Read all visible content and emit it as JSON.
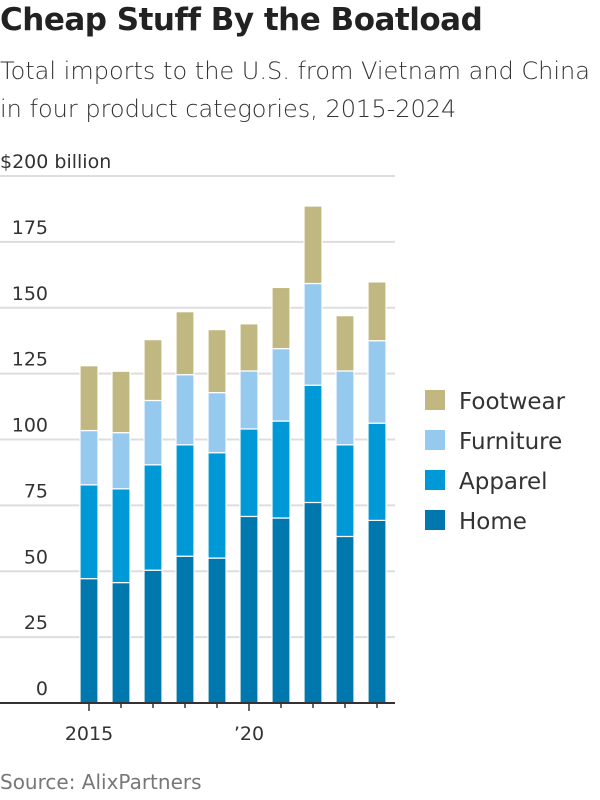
{
  "title": "Cheap Stuff By the Boatload",
  "subtitle": "Total imports to the U.S. from Vietnam and China in four product categories, 2015-2024",
  "source": "Source: AlixPartners",
  "chart_data": {
    "type": "bar",
    "stacked": true,
    "title": "Cheap Stuff By the Boatload",
    "ylabel": "$200 billion",
    "ylim": [
      0,
      200
    ],
    "yticks": [
      0,
      25,
      50,
      75,
      100,
      125,
      150,
      175,
      200
    ],
    "ytick_labels": [
      "0",
      "25",
      "50",
      "75",
      "100",
      "125",
      "150",
      "175",
      "$200 billion"
    ],
    "categories": [
      "2015",
      "2016",
      "2017",
      "2018",
      "2019",
      "2020",
      "2021",
      "2022",
      "2023",
      "2024"
    ],
    "xtick_labels": {
      "2015": "2015",
      "2020": "’20"
    },
    "grid": true,
    "legend_position": "right",
    "series": [
      {
        "name": "Home",
        "color": "#0077ad",
        "values": [
          47.2,
          45.7,
          50.4,
          55.7,
          55.0,
          70.8,
          70.2,
          76.1,
          63.2,
          69.3
        ]
      },
      {
        "name": "Apparel",
        "color": "#0099d8",
        "values": [
          35.6,
          35.6,
          40.0,
          42.3,
          40.0,
          33.2,
          36.8,
          44.5,
          34.8,
          36.9
        ]
      },
      {
        "name": "Furniture",
        "color": "#96c9ee",
        "values": [
          20.6,
          21.3,
          24.4,
          26.6,
          22.8,
          22.0,
          27.5,
          38.6,
          28.0,
          31.3
        ]
      },
      {
        "name": "Footwear",
        "color": "#c0b880",
        "values": [
          24.6,
          23.3,
          23.1,
          23.9,
          23.9,
          17.9,
          23.2,
          29.4,
          21.0,
          22.3
        ]
      }
    ],
    "legend_order": [
      "Footwear",
      "Furniture",
      "Apparel",
      "Home"
    ]
  }
}
